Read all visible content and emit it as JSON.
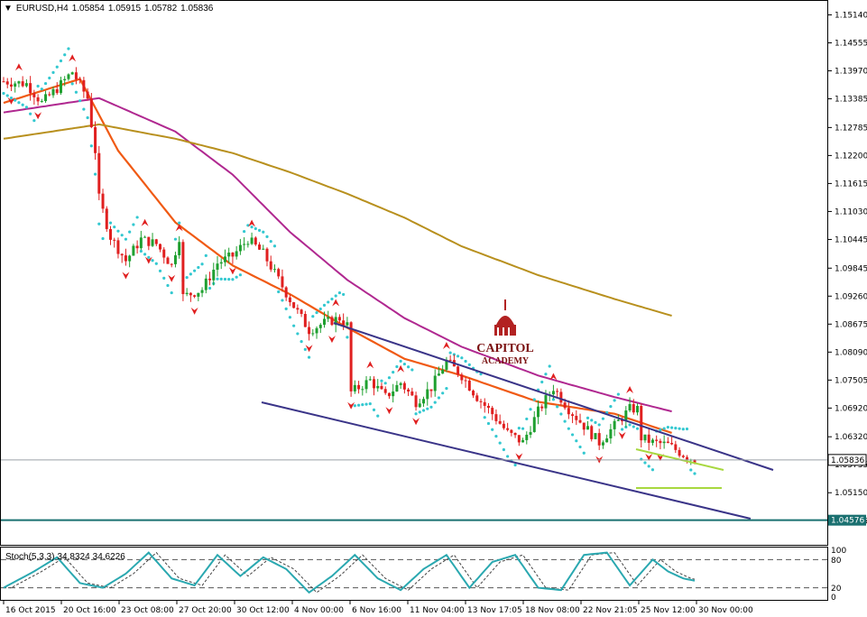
{
  "header": {
    "symbol": "EURUSD,H4",
    "open": "1.05854",
    "high": "1.05915",
    "low": "1.05782",
    "close": "1.05836"
  },
  "stoch_header": {
    "name": "Stoch(5,3,3)",
    "main": "34.8324",
    "signal": "34.6226"
  },
  "logo": {
    "line1": "CAPITOL",
    "line2": "ACADEMY"
  },
  "colors": {
    "bull_candle": "#1fa030",
    "bear_candle": "#e02020",
    "fractal": "#e02020",
    "sar": "#33c8d0",
    "ema_fast": "#f05a14",
    "ma_mid": "#b02890",
    "ma_slow": "#b8901e",
    "channel": "#3a3488",
    "triangle": "#a8d840",
    "stoch_main": "#2aa8b0",
    "grid_bg": "#ffffff",
    "frame": "#000000",
    "price_marker": "#1a7070"
  },
  "chart_data": {
    "type": "candlestick",
    "instrument": "EURUSD",
    "timeframe": "H4",
    "y_ticks": [
      "1.15140",
      "1.14555",
      "1.13970",
      "1.13385",
      "1.12785",
      "1.12200",
      "1.11615",
      "1.11030",
      "1.10445",
      "1.09845",
      "1.09260",
      "1.08675",
      "1.08090",
      "1.07505",
      "1.06920",
      "1.06320",
      "1.05735",
      "1.05150",
      "1.04565"
    ],
    "ylim": [
      1.044,
      1.153
    ],
    "x_ticks": [
      "16 Oct 2015",
      "20 Oct 16:00",
      "23 Oct 08:00",
      "27 Oct 20:00",
      "30 Oct 12:00",
      "4 Nov 00:00",
      "6 Nov 16:00",
      "11 Nov 04:00",
      "13 Nov 17:05",
      "18 Nov 08:00",
      "22 Nov 21:05",
      "25 Nov 12:00",
      "30 Nov 00:00"
    ],
    "current_price": "1.05836",
    "lower_marker": "1.04576",
    "price_path": [
      [
        0,
        1.1375
      ],
      [
        6,
        1.137
      ],
      [
        10,
        1.133
      ],
      [
        14,
        1.136
      ],
      [
        18,
        1.1395
      ],
      [
        22,
        1.134
      ],
      [
        24,
        1.123
      ],
      [
        25,
        1.113
      ],
      [
        28,
        1.105
      ],
      [
        32,
        1.1
      ],
      [
        36,
        1.1045
      ],
      [
        40,
        1.1035
      ],
      [
        44,
        1.099
      ],
      [
        46,
        1.105
      ],
      [
        47,
        1.0925
      ],
      [
        52,
        1.094
      ],
      [
        56,
        1.0995
      ],
      [
        60,
        1.101
      ],
      [
        64,
        1.1045
      ],
      [
        68,
        1.1015
      ],
      [
        72,
        1.096
      ],
      [
        76,
        1.0905
      ],
      [
        80,
        1.0855
      ],
      [
        84,
        1.087
      ],
      [
        88,
        1.088
      ],
      [
        90,
        1.0865
      ],
      [
        91,
        1.0725
      ],
      [
        96,
        1.075
      ],
      [
        100,
        1.0715
      ],
      [
        104,
        1.0745
      ],
      [
        108,
        1.0705
      ],
      [
        112,
        1.0735
      ],
      [
        116,
        1.079
      ],
      [
        120,
        1.076
      ],
      [
        124,
        1.0715
      ],
      [
        128,
        1.068
      ],
      [
        132,
        1.064
      ],
      [
        136,
        1.062
      ],
      [
        140,
        1.0685
      ],
      [
        144,
        1.0735
      ],
      [
        148,
        1.069
      ],
      [
        152,
        1.0655
      ],
      [
        156,
        1.062
      ],
      [
        160,
        1.0655
      ],
      [
        164,
        1.069
      ],
      [
        166,
        1.069
      ],
      [
        167,
        1.063
      ],
      [
        170,
        1.062
      ],
      [
        174,
        1.0615
      ],
      [
        178,
        1.0595
      ],
      [
        181,
        1.0584
      ]
    ],
    "series": [
      {
        "name": "EMA fast",
        "points": [
          [
            0,
            1.133
          ],
          [
            20,
            1.138
          ],
          [
            30,
            1.123
          ],
          [
            45,
            1.108
          ],
          [
            60,
            1.099
          ],
          [
            75,
            1.093
          ],
          [
            90,
            1.086
          ],
          [
            105,
            1.0795
          ],
          [
            120,
            1.076
          ],
          [
            140,
            1.0705
          ],
          [
            160,
            1.068
          ],
          [
            175,
            1.064
          ]
        ]
      },
      {
        "name": "MA mid",
        "points": [
          [
            0,
            1.131
          ],
          [
            25,
            1.134
          ],
          [
            45,
            1.127
          ],
          [
            60,
            1.118
          ],
          [
            75,
            1.106
          ],
          [
            90,
            1.096
          ],
          [
            105,
            1.088
          ],
          [
            120,
            1.082
          ],
          [
            140,
            1.076
          ],
          [
            160,
            1.0715
          ],
          [
            175,
            1.0685
          ]
        ]
      },
      {
        "name": "MA slow",
        "points": [
          [
            0,
            1.1255
          ],
          [
            25,
            1.1285
          ],
          [
            45,
            1.1255
          ],
          [
            60,
            1.1225
          ],
          [
            75,
            1.1185
          ],
          [
            90,
            1.114
          ],
          [
            105,
            1.109
          ],
          [
            120,
            1.103
          ],
          [
            140,
            1.097
          ],
          [
            160,
            1.092
          ],
          [
            175,
            1.0885
          ]
        ]
      },
      {
        "name": "Stoch main",
        "points": [
          [
            0,
            20
          ],
          [
            8,
            55
          ],
          [
            14,
            85
          ],
          [
            20,
            30
          ],
          [
            26,
            20
          ],
          [
            32,
            50
          ],
          [
            38,
            95
          ],
          [
            44,
            40
          ],
          [
            50,
            25
          ],
          [
            56,
            90
          ],
          [
            62,
            45
          ],
          [
            68,
            85
          ],
          [
            74,
            60
          ],
          [
            80,
            10
          ],
          [
            86,
            45
          ],
          [
            92,
            90
          ],
          [
            98,
            40
          ],
          [
            104,
            15
          ],
          [
            110,
            60
          ],
          [
            116,
            90
          ],
          [
            122,
            20
          ],
          [
            128,
            75
          ],
          [
            134,
            90
          ],
          [
            140,
            20
          ],
          [
            146,
            15
          ],
          [
            152,
            90
          ],
          [
            158,
            95
          ],
          [
            164,
            25
          ],
          [
            170,
            80
          ],
          [
            174,
            55
          ],
          [
            178,
            40
          ],
          [
            181,
            35
          ]
        ]
      }
    ]
  }
}
